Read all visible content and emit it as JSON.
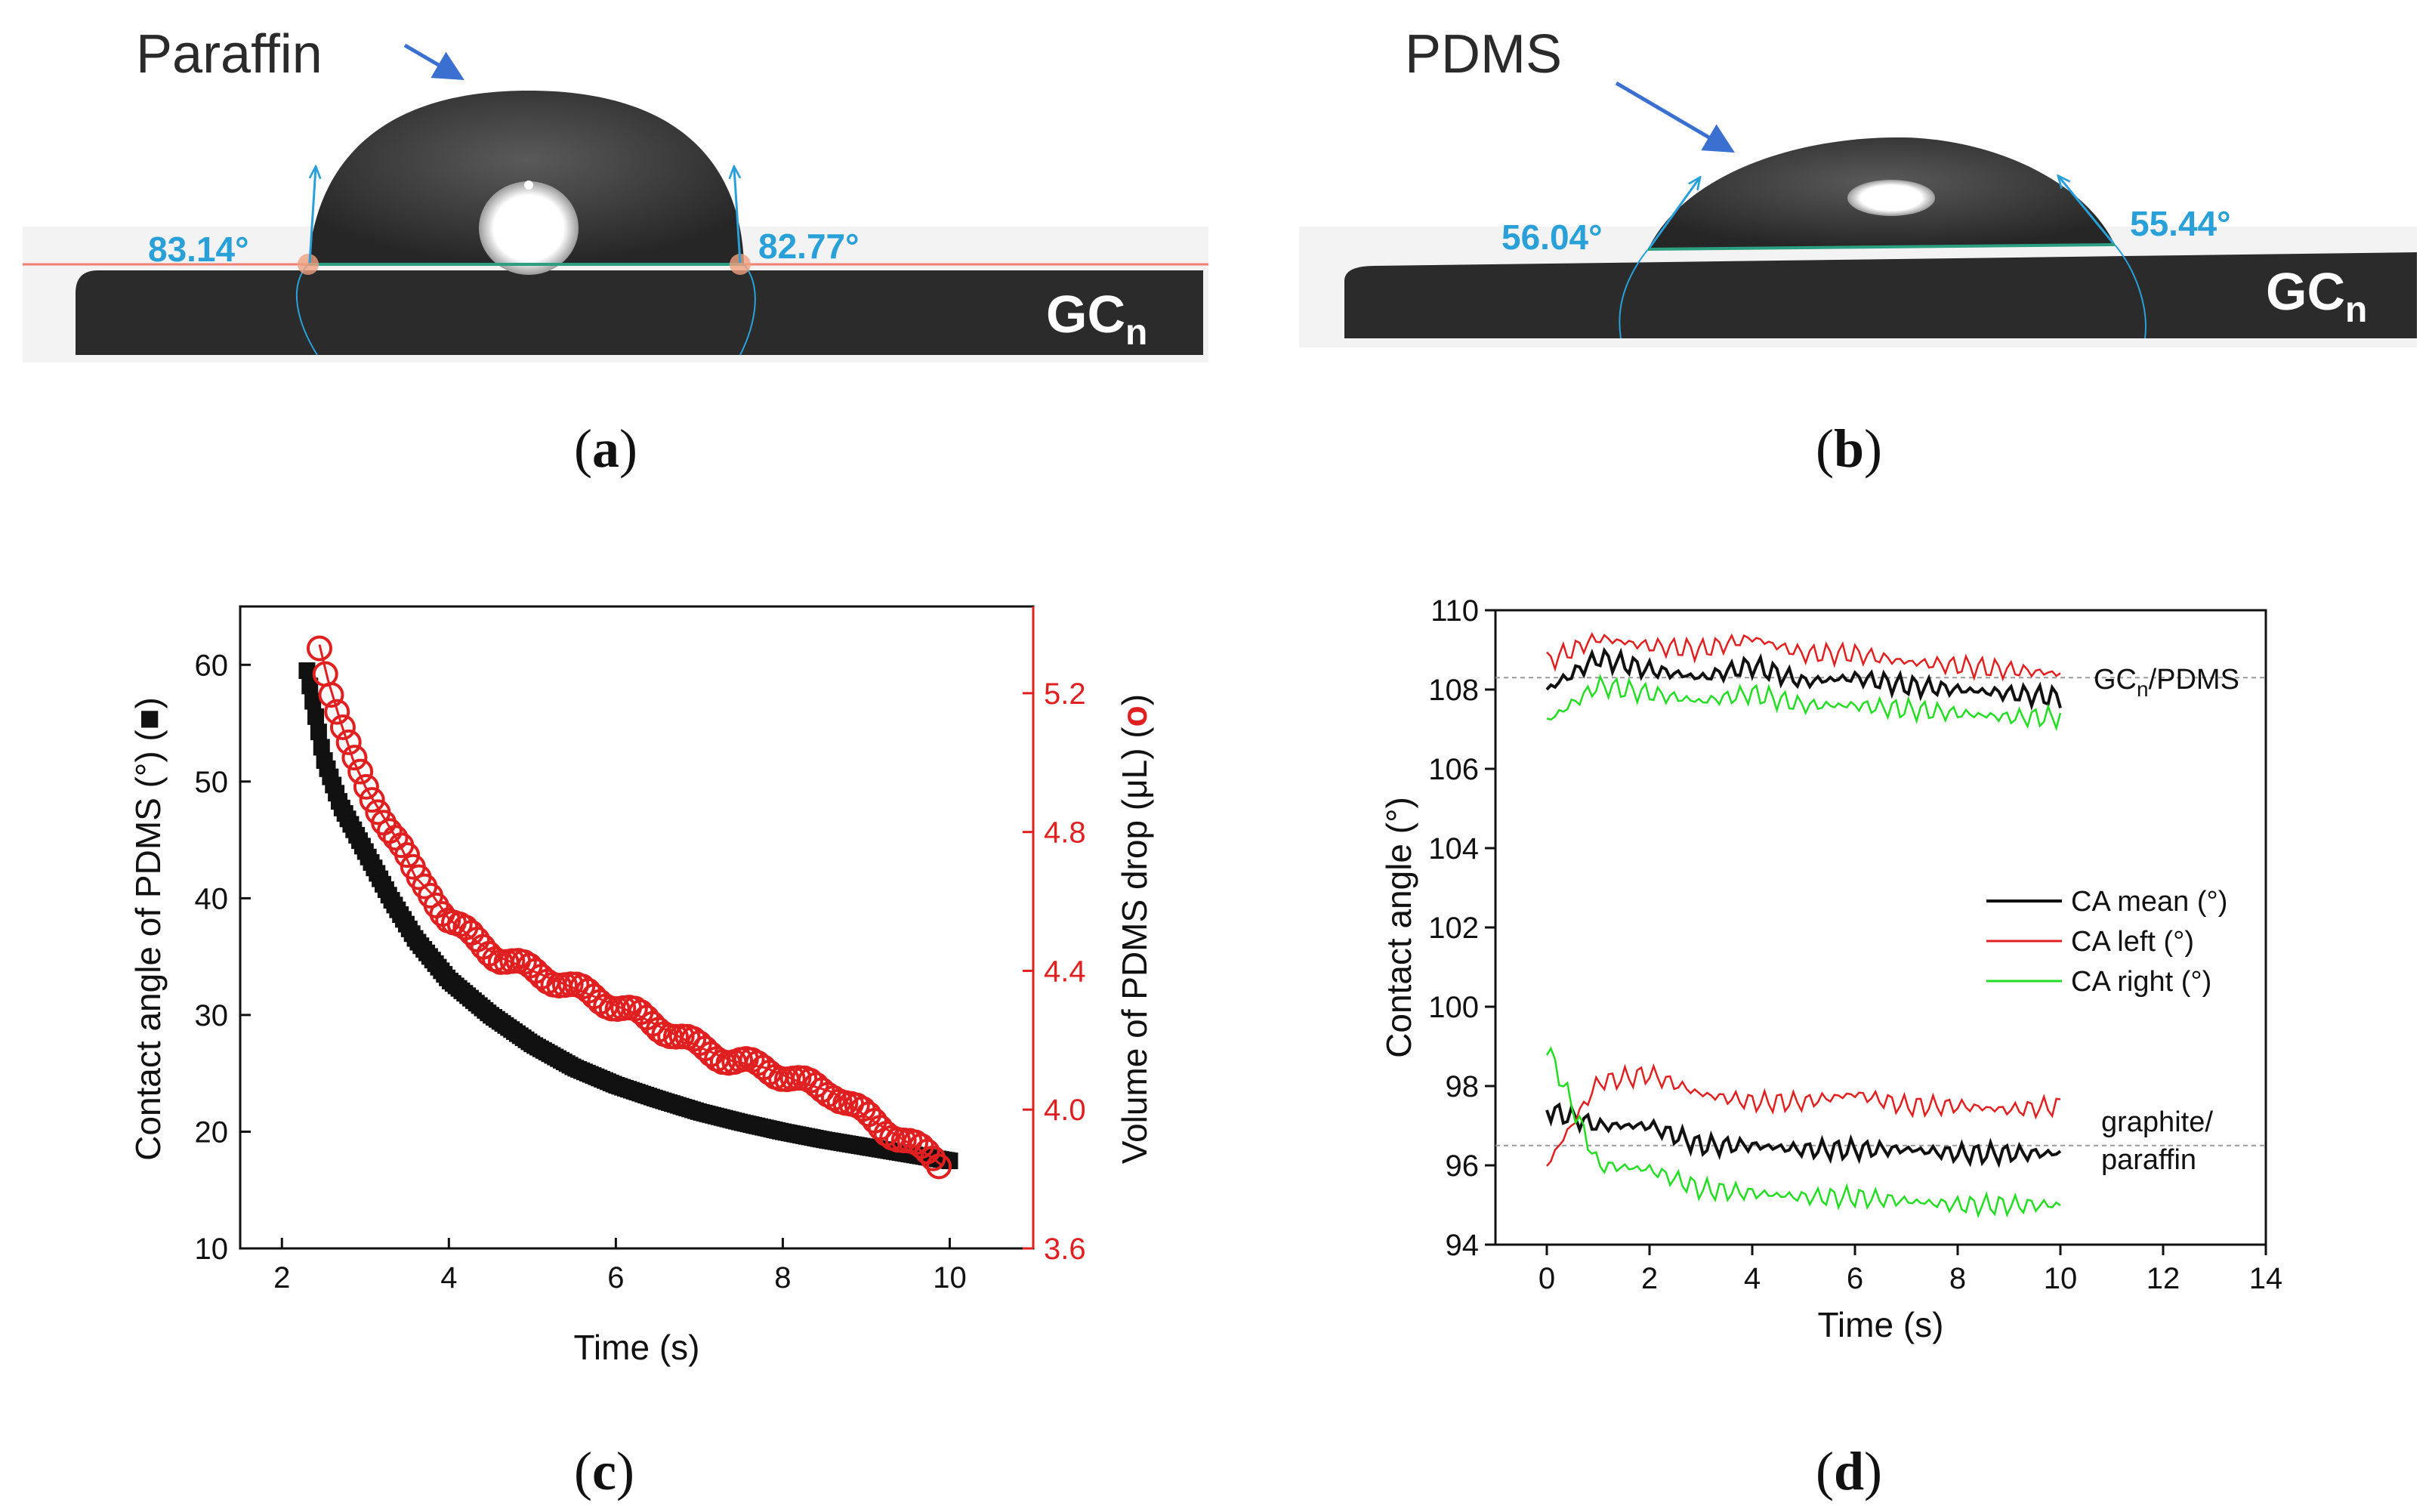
{
  "panels": {
    "a": {
      "label_open": "(",
      "letter": "a",
      "label_close": ")",
      "material": "Paraffin",
      "angle_left": "83.14°",
      "angle_right": "82.77°",
      "substrate_main": "GC",
      "substrate_sub": "n"
    },
    "b": {
      "label_open": "(",
      "letter": "b",
      "label_close": ")",
      "material": "PDMS",
      "angle_left": "56.04°",
      "angle_right": "55.44°",
      "substrate_main": "GC",
      "substrate_sub": "n"
    },
    "c": {
      "label_open": "(",
      "letter": "c",
      "label_close": ")"
    },
    "d": {
      "label_open": "(",
      "letter": "d",
      "label_close": ")"
    }
  },
  "colors": {
    "accent_blue": "#2aa0d8",
    "arrow_blue": "#3b6fd0",
    "red": "#e02020",
    "green": "#22dd22",
    "black": "#111111"
  },
  "chart_data": [
    {
      "type": "scatter",
      "panel": "c",
      "xlabel": "Time (s)",
      "ylabel_left": "Contact angle of PDMS (°) (",
      "ylabel_left_marker": "■",
      "ylabel_left_close": ")",
      "ylabel_right": "Volume of PDMS drop (μL) (",
      "ylabel_right_marker": "o",
      "ylabel_right_close": ")",
      "xlim": [
        1.5,
        11
      ],
      "xticks": [
        "2",
        "4",
        "6",
        "8",
        "10"
      ],
      "ylim_left": [
        10,
        65
      ],
      "yticks_left": [
        "10",
        "20",
        "30",
        "40",
        "50",
        "60"
      ],
      "ylim_right": [
        3.6,
        5.45
      ],
      "yticks_right": [
        "3.6",
        "4.0",
        "4.4",
        "4.8",
        "5.2"
      ],
      "series": [
        {
          "name": "Contact angle of PDMS",
          "axis": "left",
          "marker": "filled-square",
          "x": [
            2.3,
            2.5,
            2.7,
            3.0,
            3.3,
            3.6,
            4.0,
            4.5,
            5.0,
            5.5,
            6.0,
            6.5,
            7.0,
            7.5,
            8.0,
            8.5,
            9.0,
            9.5,
            10.0
          ],
          "y": [
            59.5,
            52.0,
            48.0,
            44.0,
            40.0,
            36.5,
            33.0,
            30.0,
            27.5,
            25.5,
            24.0,
            22.8,
            21.7,
            20.8,
            20.0,
            19.3,
            18.7,
            18.1,
            17.5
          ]
        },
        {
          "name": "Volume of PDMS drop",
          "axis": "right",
          "marker": "open-circle",
          "x": [
            2.45,
            2.55,
            2.7,
            2.85,
            3.0,
            3.2,
            3.4,
            3.6,
            3.8,
            4.0,
            4.3,
            4.6,
            5.0,
            5.4,
            5.8,
            6.2,
            6.6,
            7.0,
            7.4,
            7.8,
            8.2,
            8.6,
            9.0,
            9.4,
            9.8,
            9.9
          ],
          "y": [
            5.34,
            5.24,
            5.12,
            5.01,
            4.93,
            4.85,
            4.77,
            4.67,
            4.62,
            4.55,
            4.49,
            4.44,
            4.4,
            4.36,
            4.32,
            4.28,
            4.23,
            4.18,
            4.14,
            4.12,
            4.08,
            4.05,
            3.98,
            3.92,
            3.86,
            3.84
          ]
        }
      ]
    },
    {
      "type": "line",
      "panel": "d",
      "xlabel": "Time (s)",
      "ylabel": "Contact angle (°)",
      "xlim": [
        -1,
        14
      ],
      "xticks": [
        "0",
        "2",
        "4",
        "6",
        "8",
        "10",
        "12",
        "14"
      ],
      "ylim": [
        94,
        110
      ],
      "yticks": [
        "94",
        "96",
        "98",
        "100",
        "102",
        "104",
        "106",
        "108",
        "110"
      ],
      "legend": [
        "CA mean (°)",
        "CA left (°)",
        "CA right (°)"
      ],
      "reference_lines": [
        108.3,
        96.5
      ],
      "annotations": {
        "top_main": "GC",
        "top_sub": "n",
        "top_rest": "/PDMS",
        "bottom_line1": "graphite/",
        "bottom_line2": "paraffin"
      },
      "series_top": [
        {
          "name": "CA mean (°)",
          "color": "#111111",
          "x": [
            0,
            1,
            2,
            3,
            4,
            5,
            6,
            7,
            8,
            9,
            10
          ],
          "y": [
            108.0,
            108.8,
            108.5,
            108.3,
            108.6,
            108.2,
            108.3,
            108.1,
            108.0,
            107.9,
            107.8
          ]
        },
        {
          "name": "CA left (°)",
          "color": "#e02020",
          "x": [
            0,
            1,
            2,
            3,
            4,
            5,
            6,
            7,
            8,
            9,
            10
          ],
          "y": [
            108.7,
            109.3,
            109.1,
            109.0,
            109.3,
            108.9,
            108.9,
            108.7,
            108.6,
            108.5,
            108.4
          ]
        },
        {
          "name": "CA right (°)",
          "color": "#22dd22",
          "x": [
            0,
            1,
            2,
            3,
            4,
            5,
            6,
            7,
            8,
            9,
            10
          ],
          "y": [
            107.2,
            108.1,
            107.9,
            107.7,
            107.9,
            107.6,
            107.6,
            107.5,
            107.4,
            107.3,
            107.3
          ]
        }
      ],
      "series_bottom": [
        {
          "name": "CA mean (°)",
          "color": "#111111",
          "x": [
            0,
            1,
            2,
            3,
            4,
            5,
            6,
            7,
            8,
            9,
            10
          ],
          "y": [
            97.4,
            97.0,
            97.0,
            96.5,
            96.5,
            96.4,
            96.4,
            96.4,
            96.3,
            96.3,
            96.3
          ]
        },
        {
          "name": "CA left (°)",
          "color": "#e02020",
          "x": [
            0,
            1,
            2,
            3,
            4,
            5,
            6,
            7,
            8,
            9,
            10
          ],
          "y": [
            96.0,
            98.1,
            98.3,
            97.8,
            97.6,
            97.6,
            97.8,
            97.5,
            97.5,
            97.4,
            97.5
          ]
        },
        {
          "name": "CA right (°)",
          "color": "#22dd22",
          "x": [
            0,
            1,
            2,
            3,
            4,
            5,
            6,
            7,
            8,
            9,
            10
          ],
          "y": [
            99.0,
            96.0,
            95.9,
            95.4,
            95.3,
            95.2,
            95.2,
            95.1,
            95.0,
            95.0,
            95.0
          ]
        }
      ]
    }
  ]
}
